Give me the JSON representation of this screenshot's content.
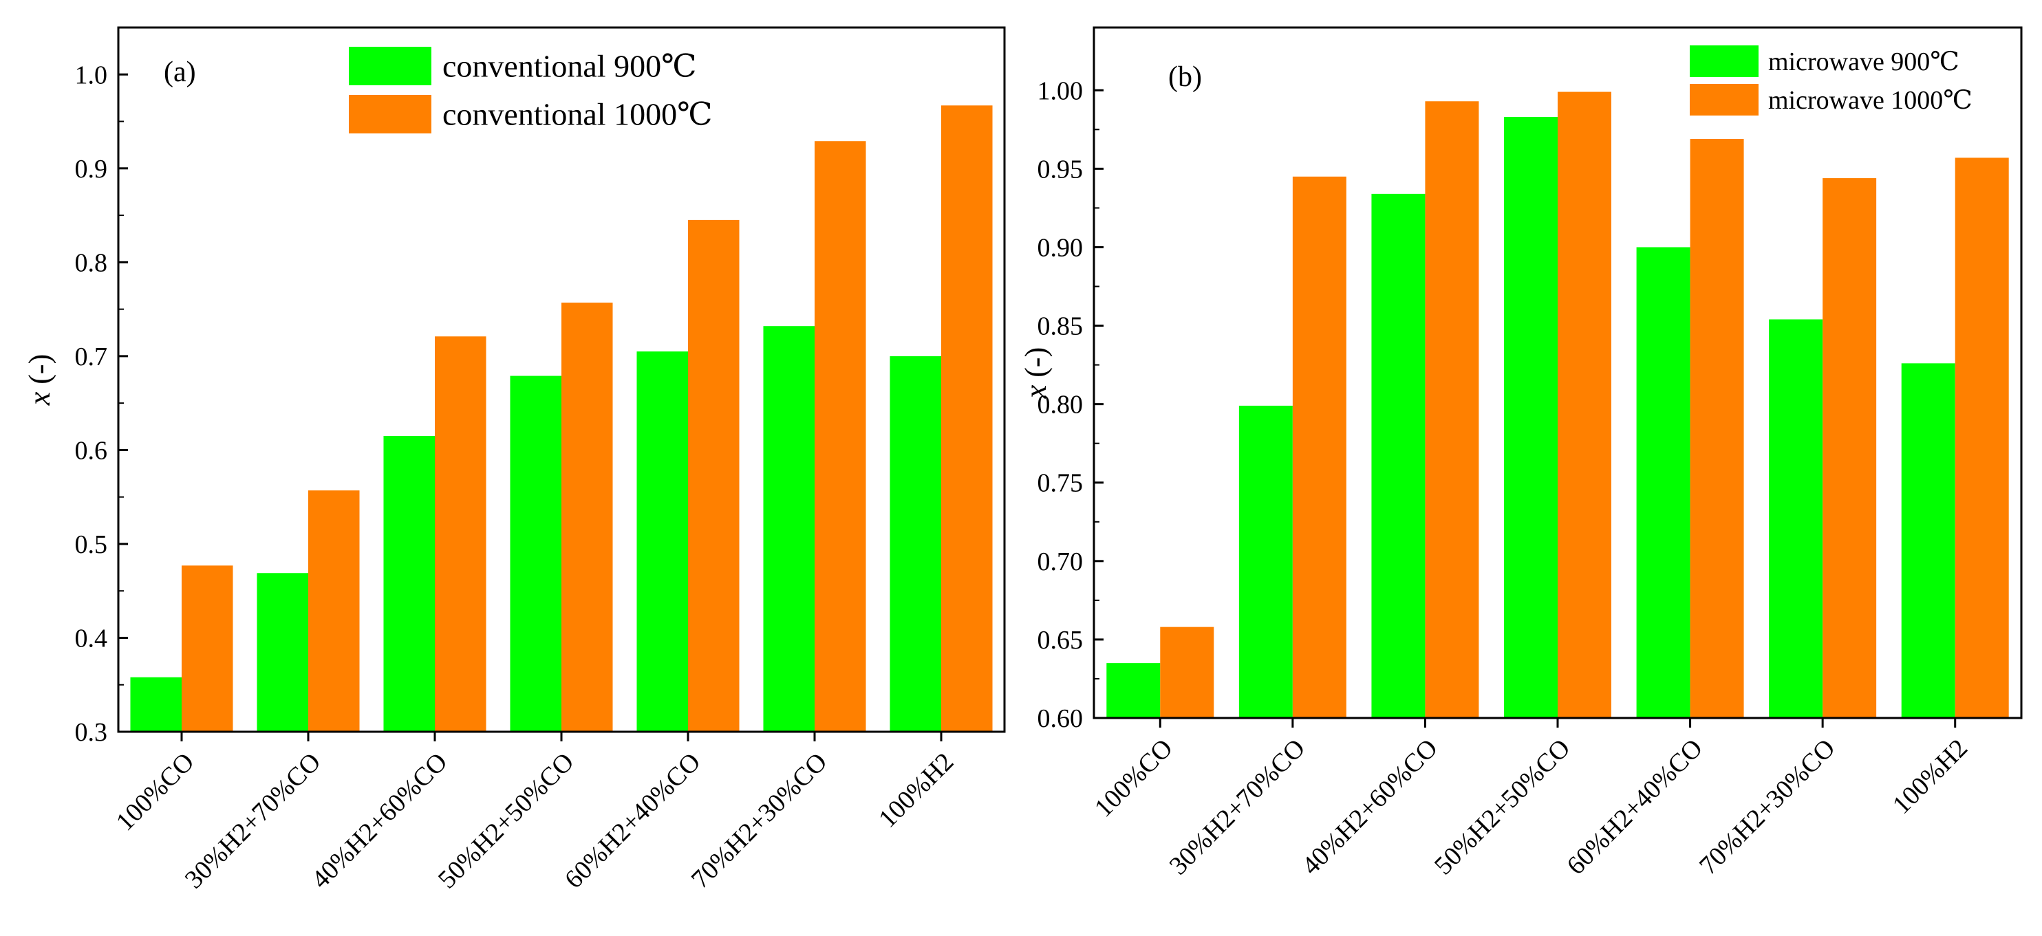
{
  "chart_data": [
    {
      "type": "bar",
      "panel_label": "(a)",
      "xlabel": "",
      "ylabel": "x (-)",
      "ylim": [
        0.3,
        1.05
      ],
      "yticks": [
        "0.3",
        "0.4",
        "0.5",
        "0.6",
        "0.7",
        "0.8",
        "0.9",
        "1.0"
      ],
      "categories": [
        "100%CO",
        "30%H2+70%CO",
        "40%H2+60%CO",
        "50%H2+50%CO",
        "60%H2+40%CO",
        "70%H2+30%CO",
        "100%H2"
      ],
      "legend_position": "top-center",
      "series": [
        {
          "name": "conventional 900℃",
          "color": "#00ff00",
          "values": [
            0.358,
            0.469,
            0.615,
            0.679,
            0.705,
            0.732,
            0.7
          ]
        },
        {
          "name": "conventional 1000℃",
          "color": "#ff8000",
          "values": [
            0.477,
            0.557,
            0.721,
            0.757,
            0.845,
            0.929,
            0.967
          ]
        }
      ]
    },
    {
      "type": "bar",
      "panel_label": "(b)",
      "xlabel": "",
      "ylabel": "x (-)",
      "ylim": [
        0.6,
        1.04
      ],
      "yticks": [
        "0.60",
        "0.65",
        "0.70",
        "0.75",
        "0.80",
        "0.85",
        "0.90",
        "0.95",
        "1.00"
      ],
      "categories": [
        "100%CO",
        "30%H2+70%CO",
        "40%H2+60%CO",
        "50%H2+50%CO",
        "60%H2+40%CO",
        "70%H2+30%CO",
        "100%H2"
      ],
      "legend_position": "top-right",
      "series": [
        {
          "name": "microwave 900℃",
          "color": "#00ff00",
          "values": [
            0.635,
            0.799,
            0.934,
            0.983,
            0.9,
            0.854,
            0.826
          ]
        },
        {
          "name": "microwave 1000℃",
          "color": "#ff8000",
          "values": [
            0.658,
            0.945,
            0.993,
            0.999,
            0.969,
            0.944,
            0.957
          ]
        }
      ]
    }
  ]
}
